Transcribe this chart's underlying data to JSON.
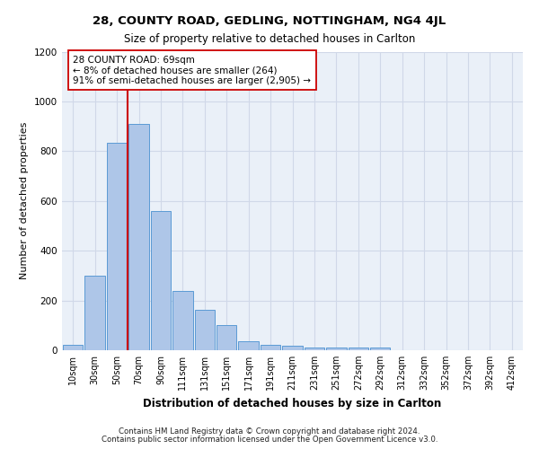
{
  "title1": "28, COUNTY ROAD, GEDLING, NOTTINGHAM, NG4 4JL",
  "title2": "Size of property relative to detached houses in Carlton",
  "xlabel": "Distribution of detached houses by size in Carlton",
  "ylabel": "Number of detached properties",
  "bar_labels": [
    "10sqm",
    "30sqm",
    "50sqm",
    "70sqm",
    "90sqm",
    "111sqm",
    "131sqm",
    "151sqm",
    "171sqm",
    "191sqm",
    "211sqm",
    "231sqm",
    "251sqm",
    "272sqm",
    "292sqm",
    "312sqm",
    "332sqm",
    "352sqm",
    "372sqm",
    "392sqm",
    "412sqm"
  ],
  "bar_values": [
    20,
    300,
    835,
    910,
    560,
    240,
    163,
    100,
    35,
    22,
    18,
    10,
    10,
    10,
    10,
    0,
    0,
    0,
    0,
    0,
    0
  ],
  "bar_color": "#aec6e8",
  "bar_edge_color": "#5b9bd5",
  "grid_color": "#d0d8e8",
  "background_color": "#eaf0f8",
  "vline_color": "#cc0000",
  "annotation_text": "28 COUNTY ROAD: 69sqm\n← 8% of detached houses are smaller (264)\n91% of semi-detached houses are larger (2,905) →",
  "annotation_box_color": "#ffffff",
  "annotation_box_edge": "#cc0000",
  "ylim": [
    0,
    1200
  ],
  "yticks": [
    0,
    200,
    400,
    600,
    800,
    1000,
    1200
  ],
  "footer1": "Contains HM Land Registry data © Crown copyright and database right 2024.",
  "footer2": "Contains public sector information licensed under the Open Government Licence v3.0."
}
